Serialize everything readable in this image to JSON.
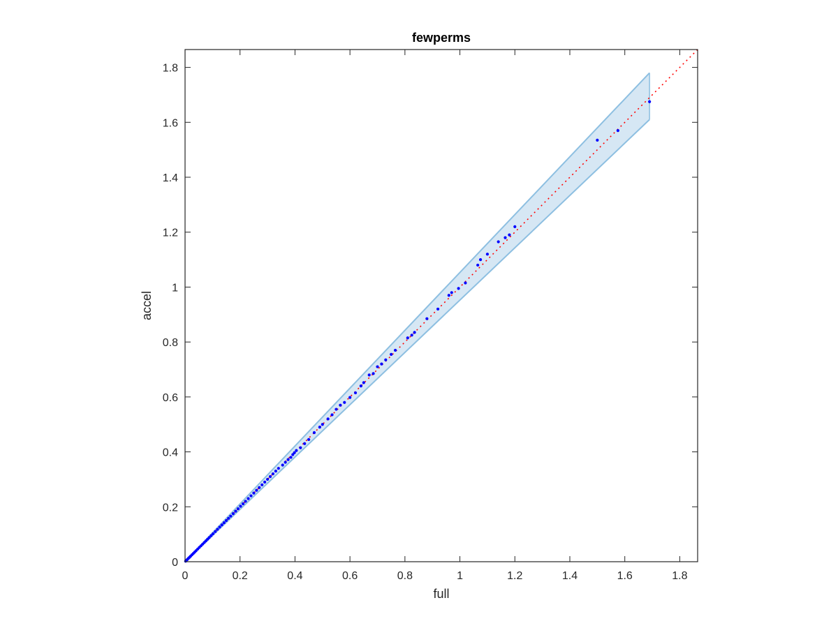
{
  "chart_data": {
    "type": "scatter",
    "title": "fewperms",
    "xlabel": "full",
    "ylabel": "accel",
    "xlim": [
      0,
      1.865
    ],
    "ylim": [
      0,
      1.865
    ],
    "xticks": [
      "0",
      "0.2",
      "0.4",
      "0.6",
      "0.8",
      "1",
      "1.2",
      "1.4",
      "1.6",
      "1.8"
    ],
    "yticks": [
      "0",
      "0.2",
      "0.4",
      "0.6",
      "0.8",
      "1",
      "1.2",
      "1.4",
      "1.6",
      "1.8"
    ],
    "grid": false,
    "legend": "none",
    "colors": {
      "points": "#0000ff",
      "reference_line": "#ff0000",
      "band_fill": "#d6e7f4",
      "band_edge": "#8dbfe1",
      "axes": "#262626"
    },
    "reference_line": {
      "style": "dotted",
      "x": [
        0,
        1.865
      ],
      "y": [
        0,
        1.865
      ]
    },
    "confidence_band": {
      "x": [
        0,
        1.69
      ],
      "upper": [
        0,
        1.78
      ],
      "lower": [
        0,
        1.61
      ]
    },
    "points": {
      "x": [
        0.002,
        0.005,
        0.008,
        0.012,
        0.016,
        0.02,
        0.025,
        0.03,
        0.035,
        0.04,
        0.046,
        0.052,
        0.058,
        0.064,
        0.07,
        0.076,
        0.082,
        0.088,
        0.095,
        0.102,
        0.11,
        0.118,
        0.126,
        0.134,
        0.142,
        0.15,
        0.158,
        0.166,
        0.175,
        0.184,
        0.193,
        0.202,
        0.211,
        0.22,
        0.23,
        0.24,
        0.25,
        0.26,
        0.27,
        0.28,
        0.29,
        0.3,
        0.31,
        0.32,
        0.33,
        0.34,
        0.355,
        0.365,
        0.375,
        0.385,
        0.392,
        0.398,
        0.405,
        0.42,
        0.435,
        0.45,
        0.47,
        0.49,
        0.5,
        0.52,
        0.535,
        0.55,
        0.565,
        0.58,
        0.6,
        0.62,
        0.64,
        0.65,
        0.67,
        0.685,
        0.7,
        0.715,
        0.73,
        0.75,
        0.765,
        0.81,
        0.825,
        0.835,
        0.88,
        0.92,
        0.96,
        0.97,
        0.995,
        1.02,
        1.065,
        1.075,
        1.1,
        1.14,
        1.165,
        1.18,
        1.2,
        1.5,
        1.575,
        1.69
      ],
      "y": [
        0.002,
        0.005,
        0.008,
        0.012,
        0.016,
        0.02,
        0.025,
        0.03,
        0.035,
        0.04,
        0.046,
        0.052,
        0.058,
        0.064,
        0.07,
        0.076,
        0.082,
        0.088,
        0.095,
        0.102,
        0.11,
        0.118,
        0.126,
        0.134,
        0.142,
        0.15,
        0.158,
        0.166,
        0.175,
        0.184,
        0.193,
        0.202,
        0.211,
        0.22,
        0.23,
        0.24,
        0.25,
        0.26,
        0.27,
        0.28,
        0.29,
        0.3,
        0.31,
        0.32,
        0.33,
        0.34,
        0.352,
        0.362,
        0.372,
        0.38,
        0.39,
        0.397,
        0.405,
        0.415,
        0.43,
        0.445,
        0.47,
        0.49,
        0.5,
        0.52,
        0.535,
        0.555,
        0.57,
        0.58,
        0.598,
        0.615,
        0.64,
        0.652,
        0.68,
        0.685,
        0.71,
        0.72,
        0.735,
        0.755,
        0.77,
        0.815,
        0.825,
        0.835,
        0.885,
        0.92,
        0.97,
        0.98,
        0.995,
        1.015,
        1.08,
        1.1,
        1.12,
        1.165,
        1.18,
        1.19,
        1.22,
        1.535,
        1.57,
        1.675
      ]
    }
  }
}
